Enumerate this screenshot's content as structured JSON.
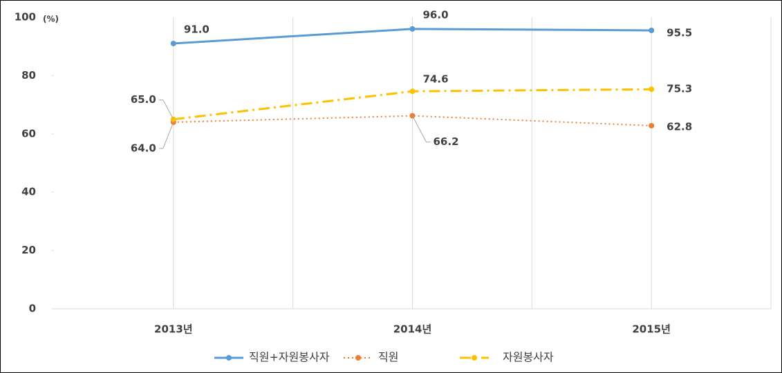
{
  "chart_data": {
    "type": "line",
    "y_label": "(%)",
    "categories": [
      "2013년",
      "2014년",
      "2015년"
    ],
    "series": [
      {
        "name": "직원+자원봉사자",
        "color": "#5b9bd5",
        "dash": "solid",
        "values": [
          91.0,
          96.0,
          95.5
        ],
        "value_labels": [
          "91.0",
          "96.0",
          "95.5"
        ]
      },
      {
        "name": "직원",
        "color": "#ed7d31",
        "dash": "dotted",
        "values": [
          64.0,
          66.2,
          62.8
        ],
        "value_labels": [
          "64.0",
          "66.2",
          "62.8"
        ]
      },
      {
        "name": "자원봉사자",
        "color": "#ffc000",
        "dash": "dashdot",
        "values": [
          65.0,
          74.6,
          75.3
        ],
        "value_labels": [
          "65.0",
          "74.6",
          "75.3"
        ]
      }
    ],
    "ylim": [
      0,
      100
    ],
    "yticks": [
      0,
      20,
      40,
      60,
      80,
      100
    ],
    "legend": "bottom"
  }
}
